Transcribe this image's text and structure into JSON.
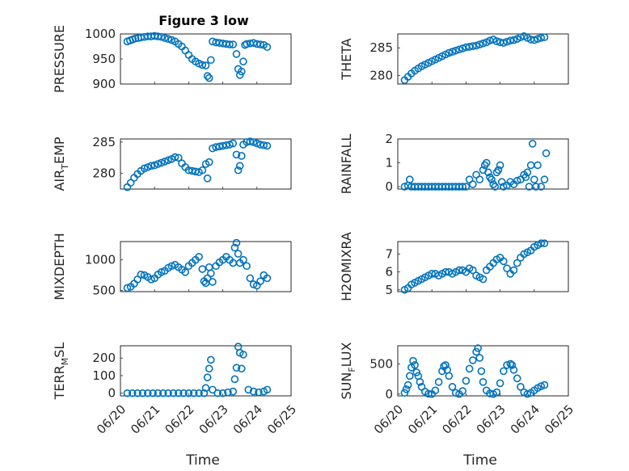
{
  "figure": {
    "title": "Figure 3 low",
    "xlabel": "Time",
    "marker_color": "#0072BD"
  },
  "chart_data": [
    {
      "type": "scatter",
      "ylabel": "PRESSURE",
      "ylabel_sub": "",
      "ylabel_after": "",
      "xlim": [
        0,
        5
      ],
      "ylim": [
        900,
        1000
      ],
      "yticks": [
        900,
        950,
        1000
      ],
      "xticks": [
        0,
        1,
        2,
        3,
        4,
        5
      ],
      "xtick_labels": [
        "06/20",
        "06/21",
        "06/22",
        "06/23",
        "06/24",
        "06/25"
      ],
      "show_xtick_labels": false,
      "x": [
        0.2,
        0.28,
        0.36,
        0.44,
        0.52,
        0.6,
        0.7,
        0.8,
        0.9,
        1.0,
        1.1,
        1.2,
        1.3,
        1.4,
        1.5,
        1.6,
        1.7,
        1.8,
        1.9,
        2.0,
        2.1,
        2.2,
        2.3,
        2.4,
        2.5,
        2.55,
        2.6,
        2.65,
        2.7,
        2.8,
        2.9,
        3.0,
        3.1,
        3.2,
        3.3,
        3.4,
        3.45,
        3.5,
        3.55,
        3.6,
        3.65,
        3.7,
        3.8,
        3.9,
        4.0,
        4.1,
        4.2,
        4.3
      ],
      "y": [
        985,
        987,
        989,
        991,
        992,
        993,
        994,
        995,
        995,
        996,
        995,
        994,
        992,
        990,
        988,
        985,
        980,
        975,
        967,
        958,
        950,
        945,
        941,
        938,
        937,
        916,
        912,
        948,
        985,
        983,
        982,
        981,
        980,
        979,
        979,
        960,
        930,
        918,
        925,
        945,
        978,
        980,
        981,
        982,
        980,
        979,
        978,
        974
      ]
    },
    {
      "type": "scatter",
      "ylabel": "THETA",
      "ylabel_sub": "",
      "ylabel_after": "",
      "xlim": [
        0,
        5
      ],
      "ylim": [
        278.5,
        287.5
      ],
      "yticks": [
        280,
        285
      ],
      "xticks": [
        0,
        1,
        2,
        3,
        4,
        5
      ],
      "xtick_labels": [
        "06/20",
        "06/21",
        "06/22",
        "06/23",
        "06/24",
        "06/25"
      ],
      "show_xtick_labels": false,
      "x": [
        0.2,
        0.3,
        0.4,
        0.5,
        0.6,
        0.7,
        0.8,
        0.9,
        1.0,
        1.1,
        1.2,
        1.3,
        1.4,
        1.5,
        1.6,
        1.7,
        1.8,
        1.9,
        2.0,
        2.1,
        2.2,
        2.3,
        2.4,
        2.5,
        2.6,
        2.7,
        2.8,
        2.9,
        3.0,
        3.1,
        3.2,
        3.3,
        3.4,
        3.5,
        3.6,
        3.7,
        3.8,
        3.9,
        4.0,
        4.1,
        4.2,
        4.3
      ],
      "y": [
        279.2,
        279.8,
        280.4,
        280.9,
        281.3,
        281.7,
        282.0,
        282.3,
        282.6,
        282.9,
        283.2,
        283.5,
        283.8,
        284.1,
        284.3,
        284.5,
        284.7,
        284.9,
        285.1,
        285.2,
        285.3,
        285.4,
        285.6,
        285.8,
        286.0,
        286.3,
        286.5,
        286.2,
        286.0,
        285.9,
        286.1,
        286.3,
        286.4,
        286.6,
        286.9,
        287.1,
        286.8,
        286.5,
        286.4,
        286.6,
        286.8,
        286.9
      ]
    },
    {
      "type": "scatter",
      "ylabel": "AIR",
      "ylabel_sub": "T",
      "ylabel_after": "EMP",
      "xlim": [
        0,
        5
      ],
      "ylim": [
        277.5,
        285.5
      ],
      "yticks": [
        280,
        285
      ],
      "xticks": [
        0,
        1,
        2,
        3,
        4,
        5
      ],
      "xtick_labels": [
        "06/20",
        "06/21",
        "06/22",
        "06/23",
        "06/24",
        "06/25"
      ],
      "show_xtick_labels": false,
      "x": [
        0.2,
        0.3,
        0.4,
        0.5,
        0.6,
        0.7,
        0.8,
        0.9,
        1.0,
        1.1,
        1.2,
        1.3,
        1.4,
        1.5,
        1.6,
        1.7,
        1.8,
        1.9,
        2.0,
        2.1,
        2.2,
        2.3,
        2.4,
        2.5,
        2.55,
        2.6,
        2.7,
        2.8,
        2.9,
        3.0,
        3.1,
        3.2,
        3.3,
        3.4,
        3.45,
        3.5,
        3.55,
        3.6,
        3.7,
        3.8,
        3.9,
        4.0,
        4.1,
        4.2,
        4.3
      ],
      "y": [
        277.8,
        278.5,
        279.3,
        279.9,
        280.4,
        280.8,
        281.0,
        281.2,
        281.3,
        281.5,
        281.7,
        281.9,
        282.1,
        282.3,
        282.6,
        282.5,
        281.6,
        281.0,
        280.5,
        280.4,
        280.3,
        280.2,
        280.5,
        281.5,
        279.2,
        281.8,
        284.0,
        284.2,
        284.3,
        284.4,
        284.5,
        284.6,
        284.8,
        283.0,
        280.5,
        281.2,
        282.8,
        284.6,
        285.0,
        285.1,
        285.0,
        284.8,
        284.6,
        284.5,
        284.4
      ]
    },
    {
      "type": "scatter",
      "ylabel": "RAINFALL",
      "ylabel_sub": "",
      "ylabel_after": "",
      "xlim": [
        0,
        5
      ],
      "ylim": [
        -0.1,
        2
      ],
      "yticks": [
        0,
        1,
        2
      ],
      "xticks": [
        0,
        1,
        2,
        3,
        4,
        5
      ],
      "xtick_labels": [
        "06/20",
        "06/21",
        "06/22",
        "06/23",
        "06/24",
        "06/25"
      ],
      "show_xtick_labels": false,
      "x": [
        0.2,
        0.3,
        0.35,
        0.4,
        0.5,
        0.6,
        0.7,
        0.8,
        0.9,
        1.0,
        1.1,
        1.2,
        1.3,
        1.4,
        1.5,
        1.6,
        1.7,
        1.8,
        1.9,
        2.0,
        2.1,
        2.2,
        2.3,
        2.4,
        2.5,
        2.55,
        2.6,
        2.65,
        2.7,
        2.75,
        2.8,
        2.85,
        2.9,
        2.95,
        3.0,
        3.05,
        3.1,
        3.2,
        3.3,
        3.4,
        3.5,
        3.6,
        3.7,
        3.75,
        3.8,
        3.85,
        3.9,
        3.95,
        4.0,
        4.05,
        4.1,
        4.2,
        4.3,
        4.35
      ],
      "y": [
        0,
        0.05,
        0.3,
        0,
        0,
        0,
        0,
        0,
        0,
        0,
        0,
        0,
        0,
        0,
        0,
        0,
        0,
        0,
        0,
        0,
        0.3,
        0.1,
        0.5,
        0.3,
        0.7,
        0.9,
        1.0,
        0.6,
        0.4,
        0.3,
        0.1,
        0.0,
        0.6,
        0.7,
        0.9,
        0.2,
        0.0,
        0.05,
        0.2,
        0.1,
        0.25,
        0.3,
        0.5,
        0.4,
        0.6,
        0.0,
        0.9,
        1.8,
        0.3,
        0.0,
        0.9,
        0.0,
        0.3,
        1.4
      ]
    },
    {
      "type": "scatter",
      "ylabel": "MIXDEPTH",
      "ylabel_sub": "",
      "ylabel_after": "",
      "xlim": [
        0,
        5
      ],
      "ylim": [
        480,
        1300
      ],
      "yticks": [
        500,
        1000
      ],
      "xticks": [
        0,
        1,
        2,
        3,
        4,
        5
      ],
      "xtick_labels": [
        "06/20",
        "06/21",
        "06/22",
        "06/23",
        "06/24",
        "06/25"
      ],
      "show_xtick_labels": false,
      "x": [
        0.2,
        0.3,
        0.4,
        0.5,
        0.6,
        0.7,
        0.8,
        0.9,
        1.0,
        1.1,
        1.2,
        1.3,
        1.4,
        1.5,
        1.6,
        1.7,
        1.8,
        1.9,
        2.0,
        2.1,
        2.2,
        2.3,
        2.4,
        2.45,
        2.5,
        2.55,
        2.6,
        2.65,
        2.7,
        2.8,
        2.9,
        3.0,
        3.1,
        3.2,
        3.3,
        3.35,
        3.4,
        3.45,
        3.5,
        3.6,
        3.7,
        3.8,
        3.9,
        4.0,
        4.1,
        4.2,
        4.3
      ],
      "y": [
        540,
        560,
        610,
        680,
        760,
        750,
        720,
        680,
        700,
        760,
        800,
        820,
        870,
        900,
        920,
        880,
        840,
        800,
        900,
        950,
        1000,
        1050,
        850,
        650,
        620,
        700,
        880,
        780,
        640,
        900,
        960,
        1000,
        1050,
        1000,
        950,
        1200,
        1280,
        1100,
        950,
        1000,
        900,
        700,
        600,
        580,
        650,
        750,
        700
      ]
    },
    {
      "type": "scatter",
      "ylabel": "H2OMIXRA",
      "ylabel_sub": "",
      "ylabel_after": "",
      "xlim": [
        0,
        5
      ],
      "ylim": [
        4.9,
        7.7
      ],
      "yticks": [
        5,
        6,
        7
      ],
      "xticks": [
        0,
        1,
        2,
        3,
        4,
        5
      ],
      "xtick_labels": [
        "06/20",
        "06/21",
        "06/22",
        "06/23",
        "06/24",
        "06/25"
      ],
      "show_xtick_labels": false,
      "x": [
        0.2,
        0.3,
        0.4,
        0.5,
        0.6,
        0.7,
        0.8,
        0.9,
        1.0,
        1.1,
        1.2,
        1.3,
        1.4,
        1.5,
        1.6,
        1.7,
        1.8,
        1.9,
        2.0,
        2.1,
        2.2,
        2.3,
        2.4,
        2.5,
        2.6,
        2.7,
        2.8,
        2.9,
        3.0,
        3.1,
        3.2,
        3.3,
        3.4,
        3.5,
        3.6,
        3.7,
        3.8,
        3.9,
        4.0,
        4.1,
        4.2,
        4.3
      ],
      "y": [
        5.0,
        5.1,
        5.3,
        5.4,
        5.5,
        5.6,
        5.7,
        5.8,
        5.9,
        5.9,
        5.8,
        5.9,
        6.0,
        6.0,
        5.9,
        6.0,
        6.1,
        6.1,
        6.0,
        6.2,
        6.1,
        5.8,
        5.7,
        5.6,
        6.1,
        6.3,
        6.5,
        6.7,
        6.8,
        6.6,
        6.2,
        5.9,
        6.1,
        6.5,
        6.8,
        7.0,
        7.1,
        7.2,
        7.4,
        7.5,
        7.6,
        7.6
      ]
    },
    {
      "type": "scatter",
      "ylabel": "TERR",
      "ylabel_sub": "M",
      "ylabel_after": "SL",
      "xlim": [
        0,
        5
      ],
      "ylim": [
        -15,
        270
      ],
      "yticks": [
        0,
        100,
        200
      ],
      "xticks": [
        0,
        1,
        2,
        3,
        4,
        5
      ],
      "xtick_labels": [
        "06/20",
        "06/21",
        "06/22",
        "06/23",
        "06/24",
        "06/25"
      ],
      "show_xtick_labels": true,
      "x": [
        0.2,
        0.35,
        0.5,
        0.65,
        0.8,
        0.95,
        1.1,
        1.25,
        1.4,
        1.55,
        1.7,
        1.85,
        2.0,
        2.15,
        2.3,
        2.45,
        2.5,
        2.55,
        2.6,
        2.65,
        2.7,
        2.85,
        3.0,
        3.15,
        3.3,
        3.35,
        3.4,
        3.45,
        3.5,
        3.55,
        3.6,
        3.75,
        3.9,
        4.05,
        4.2,
        4.3
      ],
      "y": [
        0,
        0,
        0,
        0,
        0,
        0,
        0,
        0,
        0,
        0,
        0,
        0,
        0,
        0,
        0,
        0,
        30,
        90,
        140,
        190,
        20,
        0,
        0,
        5,
        10,
        80,
        145,
        265,
        230,
        140,
        220,
        20,
        10,
        5,
        10,
        20
      ]
    },
    {
      "type": "scatter",
      "ylabel": "SUN",
      "ylabel_sub": "F",
      "ylabel_after": "LUX",
      "xlim": [
        0,
        5
      ],
      "ylim": [
        -30,
        800
      ],
      "yticks": [
        0,
        500
      ],
      "xticks": [
        0,
        1,
        2,
        3,
        4,
        5
      ],
      "xtick_labels": [
        "06/20",
        "06/21",
        "06/22",
        "06/23",
        "06/24",
        "06/25"
      ],
      "show_xtick_labels": true,
      "x": [
        0.2,
        0.25,
        0.3,
        0.35,
        0.4,
        0.45,
        0.5,
        0.55,
        0.6,
        0.65,
        0.7,
        0.8,
        0.9,
        1.0,
        1.1,
        1.2,
        1.3,
        1.35,
        1.4,
        1.45,
        1.5,
        1.6,
        1.7,
        1.8,
        1.9,
        2.0,
        2.1,
        2.2,
        2.3,
        2.35,
        2.4,
        2.45,
        2.5,
        2.6,
        2.7,
        2.8,
        2.9,
        3.0,
        3.1,
        3.2,
        3.3,
        3.35,
        3.4,
        3.5,
        3.6,
        3.7,
        3.8,
        3.9,
        4.0,
        4.1,
        4.2,
        4.3
      ],
      "y": [
        20,
        80,
        150,
        300,
        440,
        550,
        480,
        360,
        300,
        200,
        120,
        40,
        5,
        0,
        60,
        200,
        380,
        460,
        480,
        400,
        300,
        120,
        20,
        0,
        50,
        220,
        420,
        560,
        700,
        760,
        600,
        380,
        200,
        60,
        10,
        0,
        30,
        180,
        380,
        480,
        500,
        480,
        400,
        260,
        120,
        30,
        0,
        20,
        60,
        100,
        130,
        150
      ]
    }
  ]
}
